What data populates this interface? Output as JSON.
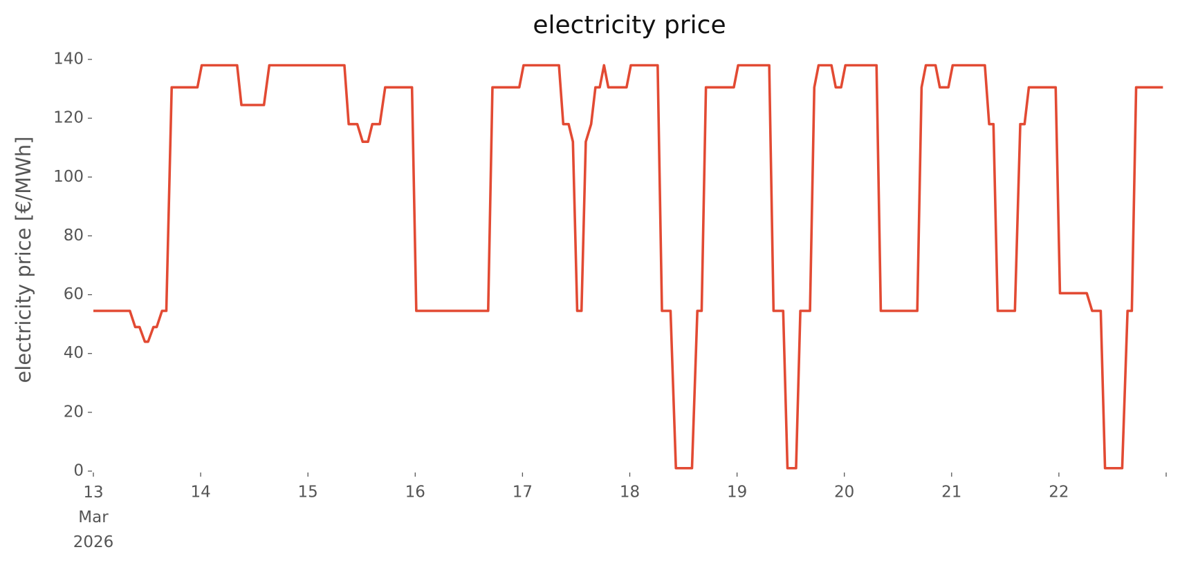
{
  "chart_data": {
    "type": "line",
    "title": "electricity price",
    "ylabel": "electricity price [€/MWh]",
    "color": "#e24a33",
    "grid": false,
    "x": [
      13.0,
      13.34,
      13.39,
      13.43,
      13.48,
      13.51,
      13.56,
      13.59,
      13.64,
      13.68,
      13.73,
      13.97,
      14.01,
      14.34,
      14.38,
      14.59,
      14.64,
      15.34,
      15.38,
      15.46,
      15.51,
      15.56,
      15.6,
      15.67,
      15.72,
      15.97,
      16.01,
      16.68,
      16.72,
      16.97,
      17.01,
      17.34,
      17.38,
      17.43,
      17.47,
      17.51,
      17.55,
      17.59,
      17.64,
      17.68,
      17.72,
      17.76,
      17.8,
      17.97,
      18.01,
      18.26,
      18.3,
      18.38,
      18.43,
      18.58,
      18.63,
      18.67,
      18.71,
      18.97,
      19.01,
      19.3,
      19.34,
      19.43,
      19.47,
      19.55,
      19.59,
      19.68,
      19.72,
      19.76,
      19.88,
      19.92,
      19.97,
      20.01,
      20.3,
      20.34,
      20.68,
      20.72,
      20.76,
      20.85,
      20.89,
      20.97,
      21.01,
      21.31,
      21.35,
      21.39,
      21.43,
      21.59,
      21.64,
      21.68,
      21.72,
      21.97,
      22.01,
      22.26,
      22.31,
      22.39,
      22.43,
      22.59,
      22.64,
      22.68,
      22.72,
      22.97
    ],
    "values": [
      54.5,
      54.5,
      49,
      49,
      44,
      44,
      49,
      49,
      54.5,
      54.5,
      130.5,
      130.5,
      138,
      138,
      124.5,
      124.5,
      138,
      138,
      118,
      118,
      112,
      112,
      118,
      118,
      130.5,
      130.5,
      54.5,
      54.5,
      130.5,
      130.5,
      138,
      138,
      118,
      118,
      112,
      54.5,
      54.5,
      112,
      118,
      130.5,
      130.5,
      138,
      130.5,
      130.5,
      138,
      138,
      54.5,
      54.5,
      1,
      1,
      54.5,
      54.5,
      130.5,
      130.5,
      138,
      138,
      54.5,
      54.5,
      1,
      1,
      54.5,
      54.5,
      130.5,
      138,
      138,
      130.5,
      130.5,
      138,
      138,
      54.5,
      54.5,
      130.5,
      138,
      138,
      130.5,
      130.5,
      138,
      138,
      118,
      118,
      54.5,
      54.5,
      118,
      118,
      130.5,
      130.5,
      60.5,
      60.5,
      54.5,
      54.5,
      1,
      1,
      54.5,
      54.5,
      130.5,
      130.5
    ],
    "xlim": [
      13,
      23
    ],
    "xticks": [
      {
        "value": 13,
        "label": "13\nMar\n2026"
      },
      14,
      15,
      16,
      17,
      18,
      19,
      20,
      21,
      22,
      {
        "value": 23,
        "label": null
      }
    ],
    "ylim": [
      0,
      140
    ],
    "yticks": [
      0,
      20,
      40,
      60,
      80,
      100,
      120,
      140
    ]
  }
}
